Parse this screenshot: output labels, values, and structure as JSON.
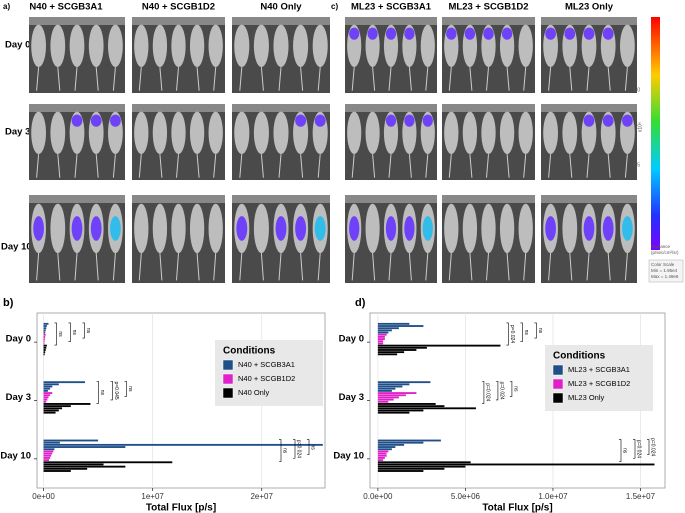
{
  "images": {
    "panel_a": "a)",
    "panel_c": "c)",
    "columns": [
      "N40 + SCGB3A1",
      "N40 + SCGB1D2",
      "N40 Only",
      "ML23 + SCGB3A1",
      "ML23 + SCGB1D2",
      "ML23 Only"
    ],
    "rows": [
      "Day 0",
      "Day 3",
      "Day 10"
    ],
    "colorbar": {
      "ticks": [
        "1.0",
        "0.5"
      ],
      "exponent": "x10⁶",
      "unit": [
        "Radiance",
        "(p/sec/cm²/sr)"
      ],
      "scale": [
        "Color Scale",
        "Min = 1.95e4",
        "Max = 1.49e6"
      ]
    }
  },
  "chart_data": [
    {
      "type": "bar",
      "orientation": "horizontal",
      "panel": "b)",
      "xlabel": "Total Flux [p/s]",
      "categories": [
        "Day 0",
        "Day 3",
        "Day 10"
      ],
      "xlim": [
        -600000,
        25800000
      ],
      "xticks": [
        {
          "value": 0,
          "label": "0e+00"
        },
        {
          "value": 10000000,
          "label": "1e+07"
        },
        {
          "value": 20000000,
          "label": "2e+07"
        }
      ],
      "grid": true,
      "legend_title": "Conditions",
      "legend": "right",
      "series": [
        {
          "name": "N40 + SCGB3A1",
          "color": "#1f4e89",
          "values": [
            [
              450000,
              300000,
              250000,
              200000,
              150000
            ],
            [
              3800000,
              1400000,
              800000,
              600000,
              400000
            ],
            [
              5000000,
              1500000,
              25600000,
              7500000,
              1000000
            ]
          ]
        },
        {
          "name": "N40 + SCGB1D2",
          "color": "#e020c8",
          "values": [
            [
              200000,
              150000,
              120000,
              100000,
              80000
            ],
            [
              800000,
              600000,
              450000,
              350000,
              250000
            ],
            [
              900000,
              800000,
              700000,
              600000,
              500000
            ]
          ]
        },
        {
          "name": "N40 Only",
          "color": "#000000",
          "values": [
            [
              300000,
              250000,
              200000,
              150000,
              100000
            ],
            [
              4300000,
              2500000,
              1700000,
              1400000,
              1100000
            ],
            [
              11800000,
              5500000,
              7500000,
              4000000,
              2500000
            ]
          ]
        }
      ],
      "annotations": [
        {
          "category": "Day 0",
          "text": "ns"
        },
        {
          "category": "Day 0",
          "text": "ns"
        },
        {
          "category": "Day 0",
          "text": "ns"
        },
        {
          "category": "Day 3",
          "text": "ns"
        },
        {
          "category": "Day 3",
          "text": "p=0.045"
        },
        {
          "category": "Day 3",
          "text": "ns"
        },
        {
          "category": "Day 10",
          "text": "ns"
        },
        {
          "category": "Day 10",
          "text": "p=0.024"
        },
        {
          "category": "Day 10",
          "text": "ns"
        }
      ]
    },
    {
      "type": "bar",
      "orientation": "horizontal",
      "panel": "d)",
      "xlabel": "Total Flux [p/s]",
      "categories": [
        "Day 0",
        "Day 3",
        "Day 10"
      ],
      "xlim": [
        -450000,
        16400000
      ],
      "xticks": [
        {
          "value": 0,
          "label": "0.0e+00"
        },
        {
          "value": 5000000,
          "label": "5.0e+06"
        },
        {
          "value": 10000000,
          "label": "1.0e+07"
        },
        {
          "value": 15000000,
          "label": "1.5e+07"
        }
      ],
      "grid": true,
      "legend_title": "Conditions",
      "legend": "right",
      "series": [
        {
          "name": "ML23 + SCGB3A1",
          "color": "#1f4e89",
          "values": [
            [
              1800000,
              2600000,
              1200000,
              800000,
              600000
            ],
            [
              3000000,
              1800000,
              1400000,
              1000000,
              800000
            ],
            [
              3600000,
              2600000,
              1500000,
              1000000,
              800000
            ]
          ]
        },
        {
          "name": "ML23 + SCGB1D2",
          "color": "#e020c8",
          "values": [
            [
              500000,
              400000,
              400000,
              300000,
              300000
            ],
            [
              2200000,
              1600000,
              1200000,
              900000,
              600000
            ],
            [
              600000,
              500000,
              500000,
              400000,
              300000
            ]
          ]
        },
        {
          "name": "ML23 Only",
          "color": "#000000",
          "values": [
            [
              7000000,
              2800000,
              2200000,
              1500000,
              1100000
            ],
            [
              3300000,
              3800000,
              5600000,
              2600000,
              1800000
            ],
            [
              5300000,
              15800000,
              5000000,
              3800000,
              2600000
            ]
          ]
        }
      ],
      "annotations": [
        {
          "category": "Day 0",
          "text": "p=0.024"
        },
        {
          "category": "Day 0",
          "text": "ns"
        },
        {
          "category": "Day 0",
          "text": "ns"
        },
        {
          "category": "Day 3",
          "text": "p=0.024"
        },
        {
          "category": "Day 3",
          "text": "p=0.024"
        },
        {
          "category": "Day 3",
          "text": "ns"
        },
        {
          "category": "Day 10",
          "text": "ns"
        },
        {
          "category": "Day 10",
          "text": "p=0.024"
        },
        {
          "category": "Day 10",
          "text": "p=0.024"
        }
      ]
    }
  ]
}
